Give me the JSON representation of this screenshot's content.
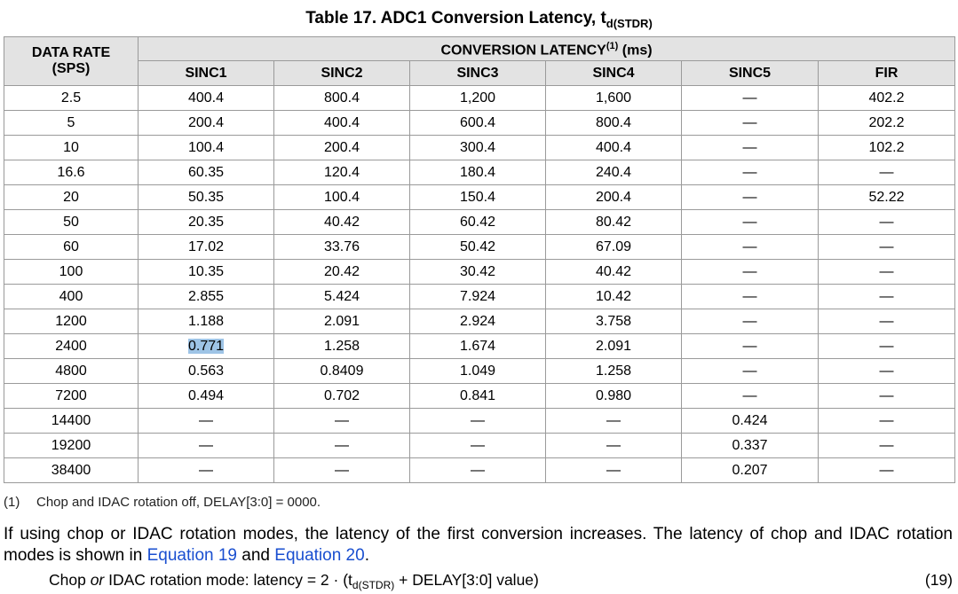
{
  "table": {
    "title_main": "Table 17. ADC1 Conversion Latency, t",
    "title_sub": "d(STDR)",
    "data_rate_header": "DATA RATE",
    "data_rate_unit": "(SPS)",
    "group_header": "CONVERSION LATENCY",
    "group_footnote_ref": "(1)",
    "group_unit": " (ms)",
    "columns": [
      "SINC1",
      "SINC2",
      "SINC3",
      "SINC4",
      "SINC5",
      "FIR"
    ],
    "rows": [
      [
        "2.5",
        "400.4",
        "800.4",
        "1,200",
        "1,600",
        "—",
        "402.2"
      ],
      [
        "5",
        "200.4",
        "400.4",
        "600.4",
        "800.4",
        "—",
        "202.2"
      ],
      [
        "10",
        "100.4",
        "200.4",
        "300.4",
        "400.4",
        "—",
        "102.2"
      ],
      [
        "16.6",
        "60.35",
        "120.4",
        "180.4",
        "240.4",
        "—",
        "—"
      ],
      [
        "20",
        "50.35",
        "100.4",
        "150.4",
        "200.4",
        "—",
        "52.22"
      ],
      [
        "50",
        "20.35",
        "40.42",
        "60.42",
        "80.42",
        "—",
        "—"
      ],
      [
        "60",
        "17.02",
        "33.76",
        "50.42",
        "67.09",
        "—",
        "—"
      ],
      [
        "100",
        "10.35",
        "20.42",
        "30.42",
        "40.42",
        "—",
        "—"
      ],
      [
        "400",
        "2.855",
        "5.424",
        "7.924",
        "10.42",
        "—",
        "—"
      ],
      [
        "1200",
        "1.188",
        "2.091",
        "2.924",
        "3.758",
        "—",
        "—"
      ],
      [
        "2400",
        "0.771",
        "1.258",
        "1.674",
        "2.091",
        "—",
        "—"
      ],
      [
        "4800",
        "0.563",
        "0.8409",
        "1.049",
        "1.258",
        "—",
        "—"
      ],
      [
        "7200",
        "0.494",
        "0.702",
        "0.841",
        "0.980",
        "—",
        "—"
      ],
      [
        "14400",
        "—",
        "—",
        "—",
        "—",
        "0.424",
        "—"
      ],
      [
        "19200",
        "—",
        "—",
        "—",
        "—",
        "0.337",
        "—"
      ],
      [
        "38400",
        "—",
        "—",
        "—",
        "—",
        "0.207",
        "—"
      ]
    ],
    "selected_cell_value": "0.771",
    "selected_color": "#9ec4e6"
  },
  "footnote": {
    "num": "(1)",
    "text": "Chop and IDAC rotation off, DELAY[3:0] = 0000."
  },
  "paragraph": {
    "text_before": "If using chop or IDAC rotation modes, the latency of the first conversion increases. The latency of chop and IDAC rotation modes is shown in ",
    "link1": "Equation 19",
    "text_middle": " and ",
    "link2": "Equation 20",
    "text_after": "."
  },
  "equation": {
    "word1": "Chop ",
    "word_or": "or",
    "text_a": " IDAC rotation mode: latency = 2 · (t",
    "sub": "d(STDR)",
    "text_b": " + DELAY[3:0] value)",
    "number": "(19)"
  }
}
